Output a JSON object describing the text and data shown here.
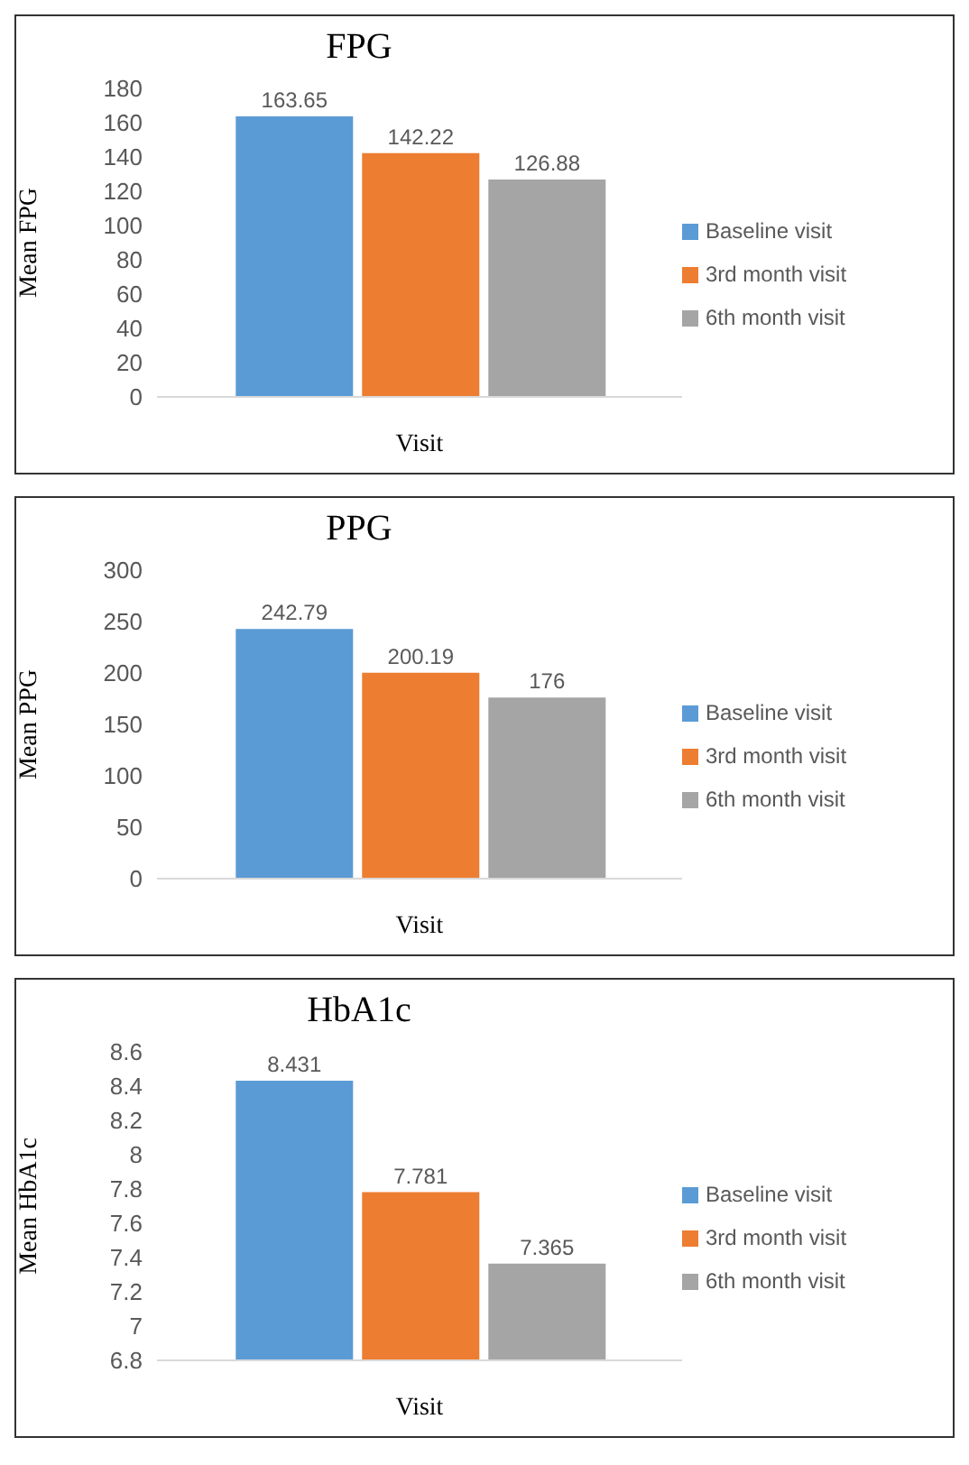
{
  "chart_data": [
    {
      "type": "bar",
      "title": "FPG",
      "xlabel": "Visit",
      "ylabel": "Mean FPG",
      "categories": [
        null
      ],
      "ylim": [
        0,
        180
      ],
      "yticks": [
        0,
        20,
        40,
        60,
        80,
        100,
        120,
        140,
        160,
        180
      ],
      "grid": false,
      "legend": "right",
      "data_labels": true,
      "series": [
        {
          "name": "Baseline visit",
          "color": "#5b9bd5",
          "values": [
            163.65
          ]
        },
        {
          "name": "3rd month visit",
          "color": "#ed7d31",
          "values": [
            142.22
          ]
        },
        {
          "name": "6th month visit",
          "color": "#a5a5a5",
          "values": [
            126.88
          ]
        }
      ]
    },
    {
      "type": "bar",
      "title": "PPG",
      "xlabel": "Visit",
      "ylabel": "Mean PPG",
      "categories": [
        null
      ],
      "ylim": [
        0,
        300
      ],
      "yticks": [
        0,
        50,
        100,
        150,
        200,
        250,
        300
      ],
      "grid": false,
      "legend": "right",
      "data_labels": true,
      "series": [
        {
          "name": "Baseline visit",
          "color": "#5b9bd5",
          "values": [
            242.79
          ]
        },
        {
          "name": "3rd month visit",
          "color": "#ed7d31",
          "values": [
            200.19
          ]
        },
        {
          "name": "6th month visit",
          "color": "#a5a5a5",
          "values": [
            176
          ]
        }
      ]
    },
    {
      "type": "bar",
      "title": "HbA1c",
      "xlabel": "Visit",
      "ylabel": "Mean HbA1c",
      "categories": [
        null
      ],
      "ylim": [
        6.8,
        8.6
      ],
      "yticks": [
        6.8,
        7,
        7.2,
        7.4,
        7.6,
        7.8,
        8,
        8.2,
        8.4,
        8.6
      ],
      "grid": false,
      "legend": "right",
      "data_labels": true,
      "series": [
        {
          "name": "Baseline visit",
          "color": "#5b9bd5",
          "values": [
            8.431
          ]
        },
        {
          "name": "3rd month visit",
          "color": "#ed7d31",
          "values": [
            7.781
          ]
        },
        {
          "name": "6th month visit",
          "color": "#a5a5a5",
          "values": [
            7.365
          ]
        }
      ]
    }
  ]
}
